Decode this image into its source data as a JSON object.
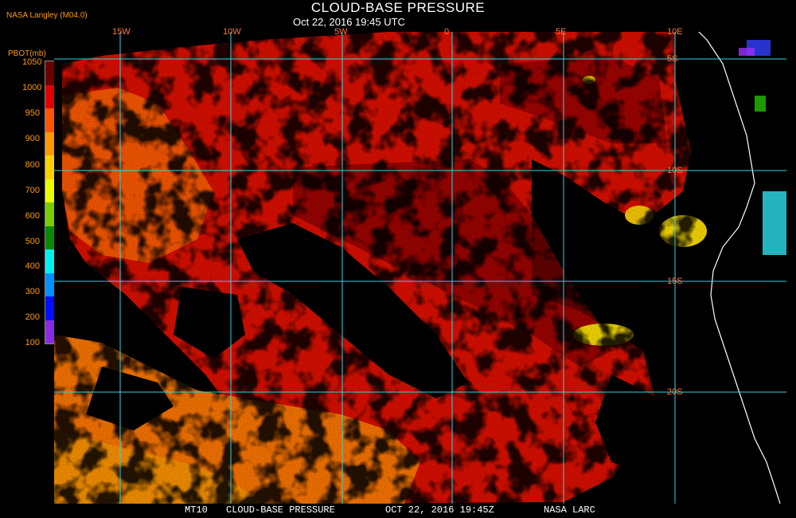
{
  "header": {
    "title": "CLOUD-BASE PRESSURE",
    "subtitle": "Oct 22, 2016 19:45 UTC",
    "producer": "NASA Langley (M04.0)"
  },
  "legend": {
    "title": "PBOT(mb)",
    "labels": [
      "1050",
      "1000",
      "950",
      "900",
      "800",
      "700",
      "600",
      "500",
      "400",
      "300",
      "200",
      "100"
    ],
    "colors": [
      "#6b0000",
      "#e00000",
      "#ff5500",
      "#ff9900",
      "#ffd000",
      "#e8ff00",
      "#7acd00",
      "#0a8a00",
      "#00f0f0",
      "#0090ff",
      "#0010ff",
      "#8a2be2"
    ]
  },
  "map": {
    "lon_labels": [
      "15W",
      "10W",
      "5W",
      "0",
      "5E",
      "10E"
    ],
    "lat_labels": [
      "5S",
      "10S",
      "15S",
      "20S"
    ],
    "grid_color": "#38d0e0",
    "coast_color": "#ffffff"
  },
  "footer": {
    "product": "MT10",
    "name": "CLOUD-BASE PRESSURE",
    "datetime": "OCT 22, 2016 19:45Z",
    "source": "NASA LARC"
  }
}
